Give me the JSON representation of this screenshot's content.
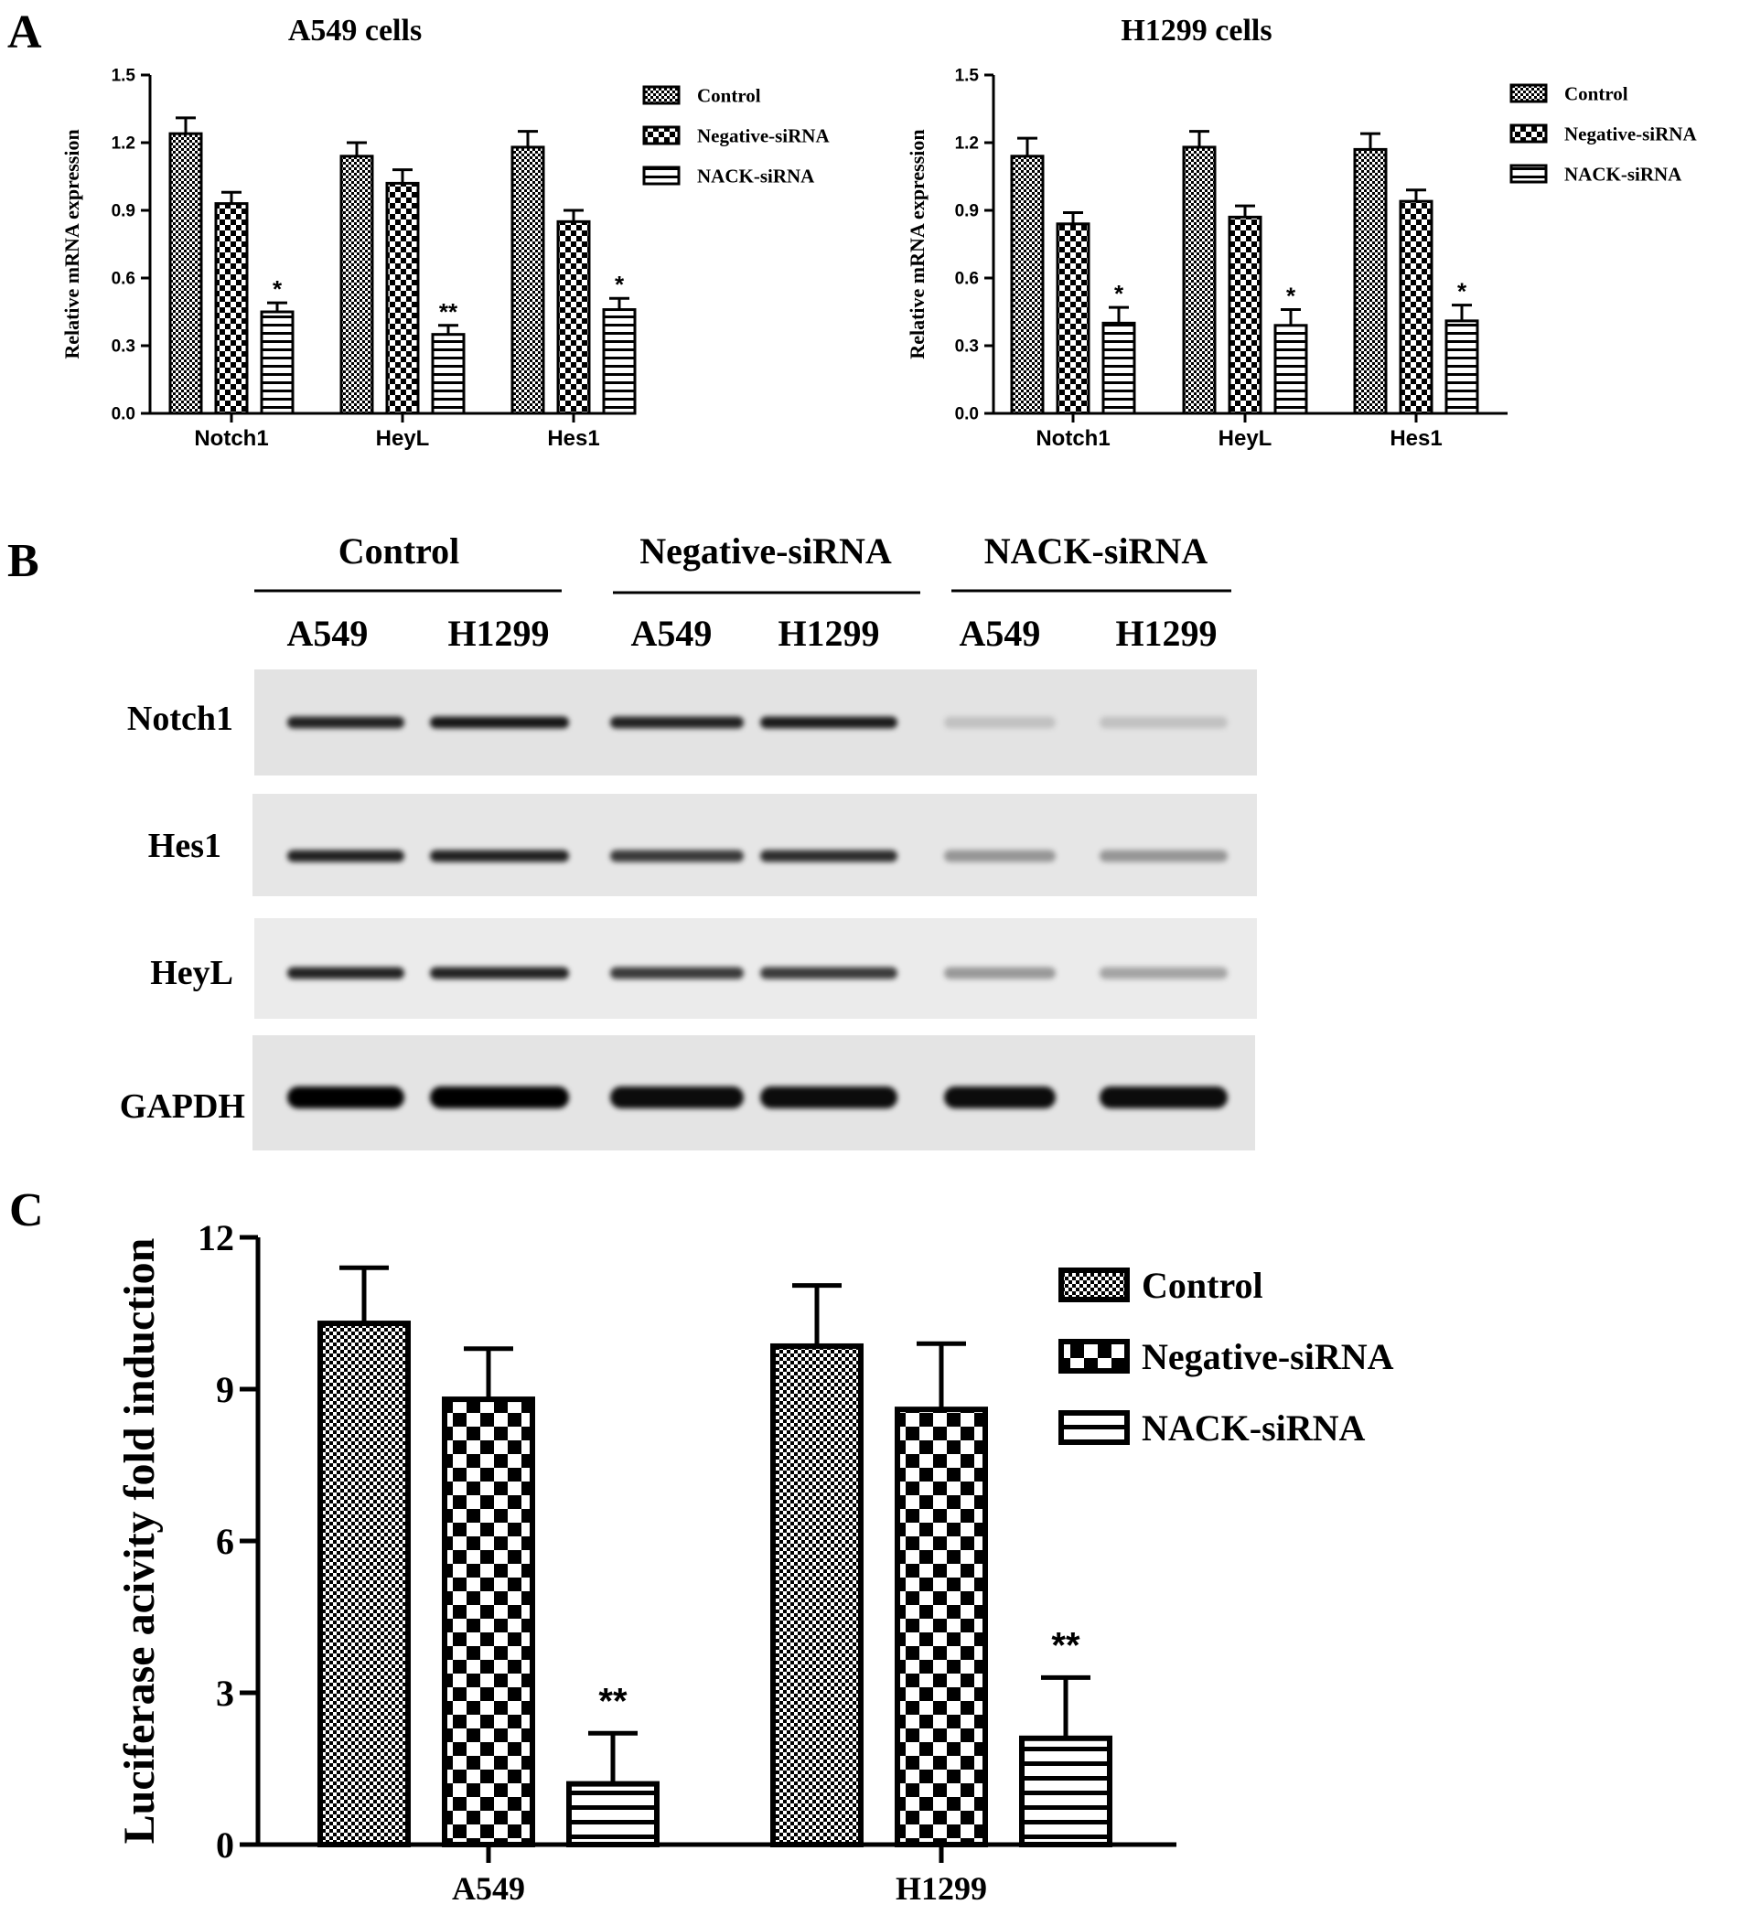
{
  "panels": {
    "A": "A",
    "B": "B",
    "C": "C"
  },
  "chart_data": [
    {
      "id": "A549",
      "type": "bar",
      "title": "A549 cells",
      "ylabel": "Relative mRNA expression",
      "xlabel": "",
      "ylim": [
        0,
        1.5
      ],
      "yticks": [
        "0.0",
        "0.3",
        "0.6",
        "0.9",
        "1.2",
        "1.5"
      ],
      "categories": [
        "Notch1",
        "HeyL",
        "Hes1"
      ],
      "series": [
        {
          "name": "Control",
          "values": [
            1.24,
            1.14,
            1.18
          ],
          "errors": [
            0.07,
            0.06,
            0.07
          ]
        },
        {
          "name": "Negative-siRNA",
          "values": [
            0.93,
            1.02,
            0.85
          ],
          "errors": [
            0.05,
            0.06,
            0.05
          ]
        },
        {
          "name": "NACK-siRNA",
          "values": [
            0.45,
            0.35,
            0.46
          ],
          "errors": [
            0.04,
            0.04,
            0.05
          ]
        }
      ],
      "annotations": [
        {
          "category": "Notch1",
          "series": "NACK-siRNA",
          "text": "*"
        },
        {
          "category": "HeyL",
          "series": "NACK-siRNA",
          "text": "**"
        },
        {
          "category": "Hes1",
          "series": "NACK-siRNA",
          "text": "*"
        }
      ],
      "legend": "top-right"
    },
    {
      "id": "H1299",
      "type": "bar",
      "title": "H1299 cells",
      "ylabel": "Relative mRNA expression",
      "xlabel": "",
      "ylim": [
        0,
        1.5
      ],
      "yticks": [
        "0.0",
        "0.3",
        "0.6",
        "0.9",
        "1.2",
        "1.5"
      ],
      "categories": [
        "Notch1",
        "HeyL",
        "Hes1"
      ],
      "series": [
        {
          "name": "Control",
          "values": [
            1.14,
            1.18,
            1.17
          ],
          "errors": [
            0.08,
            0.07,
            0.07
          ]
        },
        {
          "name": "Negative-siRNA",
          "values": [
            0.84,
            0.87,
            0.94
          ],
          "errors": [
            0.05,
            0.05,
            0.05
          ]
        },
        {
          "name": "NACK-siRNA",
          "values": [
            0.4,
            0.39,
            0.41
          ],
          "errors": [
            0.07,
            0.07,
            0.07
          ]
        }
      ],
      "annotations": [
        {
          "category": "Notch1",
          "series": "NACK-siRNA",
          "text": "*"
        },
        {
          "category": "HeyL",
          "series": "NACK-siRNA",
          "text": "*"
        },
        {
          "category": "Hes1",
          "series": "NACK-siRNA",
          "text": "*"
        }
      ],
      "legend": "top-right"
    },
    {
      "id": "luciferase",
      "type": "bar",
      "title": "",
      "ylabel": "Luciferase acivity fold induction",
      "xlabel": "",
      "ylim": [
        0,
        12
      ],
      "yticks": [
        "0",
        "3",
        "6",
        "9",
        "12"
      ],
      "categories": [
        "A549",
        "H1299"
      ],
      "series": [
        {
          "name": "Control",
          "values": [
            10.3,
            9.85
          ],
          "errors": [
            1.1,
            1.2
          ]
        },
        {
          "name": "Negative-siRNA",
          "values": [
            8.8,
            8.6
          ],
          "errors": [
            1.0,
            1.3
          ]
        },
        {
          "name": "NACK-siRNA",
          "values": [
            1.2,
            2.1
          ],
          "errors": [
            1.0,
            1.2
          ]
        }
      ],
      "annotations": [
        {
          "category": "A549",
          "series": "NACK-siRNA",
          "text": "**"
        },
        {
          "category": "H1299",
          "series": "NACK-siRNA",
          "text": "**"
        }
      ],
      "legend": "top-right"
    }
  ],
  "blot": {
    "groups": [
      "Control",
      "Negative-siRNA",
      "NACK-siRNA"
    ],
    "lanes": [
      "A549",
      "H1299",
      "A549",
      "H1299",
      "A549",
      "H1299"
    ],
    "proteins": [
      {
        "name": "Notch1",
        "intensity": [
          0.85,
          0.9,
          0.85,
          0.88,
          0.15,
          0.15
        ]
      },
      {
        "name": "Hes1",
        "intensity": [
          0.85,
          0.85,
          0.75,
          0.8,
          0.35,
          0.35
        ]
      },
      {
        "name": "HeyL",
        "intensity": [
          0.85,
          0.85,
          0.75,
          0.75,
          0.35,
          0.3
        ]
      },
      {
        "name": "GAPDH",
        "intensity": [
          1.0,
          1.0,
          0.95,
          0.95,
          0.95,
          0.95
        ]
      }
    ]
  }
}
